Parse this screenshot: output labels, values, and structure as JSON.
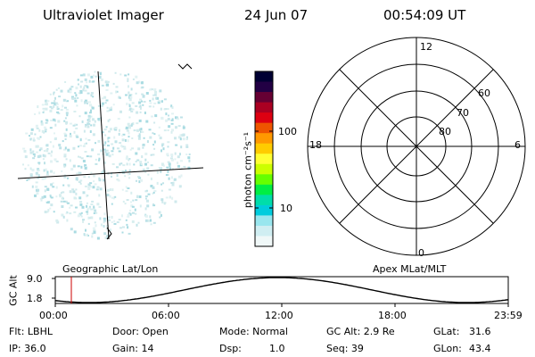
{
  "header": {
    "title": "Ultraviolet Imager",
    "date": "24 Jun 07",
    "time": "00:54:09 UT"
  },
  "colorbar": {
    "label": "photon cm⁻²s⁻¹",
    "ticks": [
      "100",
      "10"
    ],
    "colors": [
      "#000033",
      "#220044",
      "#660033",
      "#aa0022",
      "#dd0011",
      "#ee5500",
      "#ff9900",
      "#ffcc00",
      "#ffff33",
      "#ccff00",
      "#66ff00",
      "#00ee44",
      "#00ddaa",
      "#00ccdd",
      "#99e6ee",
      "#d0eef2",
      "#f0f8f8"
    ]
  },
  "polar_plot": {
    "labels": {
      "top": "12",
      "left": "18",
      "right": "6",
      "bottom": "0",
      "lat60": "60",
      "lat70": "70",
      "lat80": "80"
    }
  },
  "orbit_plot": {
    "left_label": "Geographic Lat/Lon",
    "right_label": "Apex MLat/MLT",
    "y_axis_label": "GC Alt",
    "y_ticks": [
      "9.0",
      "1.8"
    ],
    "x_ticks": [
      "00:00",
      "06:00",
      "12:00",
      "18:00",
      "23:59"
    ],
    "marker_time": "00:54:09"
  },
  "status": {
    "filter": "Flt: LBHL",
    "ip": "IP: 36.0",
    "door": "Door: Open",
    "gain": "Gain: 14",
    "mode": "Mode: Normal",
    "dsp_label": "Dsp:",
    "dsp_value": "1.0",
    "gc_alt": "GC Alt: 2.9 Re",
    "seq": "Seq: 39",
    "glat_label": "GLat:",
    "glat_value": "31.6",
    "glon_label": "GLon:",
    "glon_value": "43.4"
  }
}
